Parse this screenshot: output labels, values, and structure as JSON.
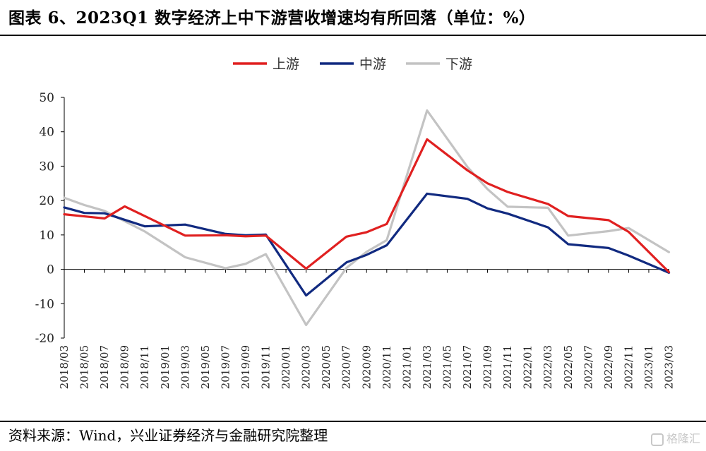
{
  "header": {
    "title": "图表 6、2023Q1 数字经济上中下游营收增速均有所回落（单位：%）"
  },
  "footer": {
    "source": "资料来源：Wind，兴业证券经济与金融研究院整理",
    "watermark": "格隆汇"
  },
  "chart_data": {
    "type": "line",
    "title": "",
    "xlabel": "",
    "ylabel": "",
    "ylim": [
      -20,
      50
    ],
    "yticks": [
      -20,
      -10,
      0,
      10,
      20,
      30,
      40,
      50
    ],
    "grid": false,
    "legend_position": "top-center",
    "categories": [
      "2018/03",
      "2018/05",
      "2018/07",
      "2018/09",
      "2018/11",
      "2019/01",
      "2019/03",
      "2019/05",
      "2019/07",
      "2019/09",
      "2019/11",
      "2020/01",
      "2020/03",
      "2020/05",
      "2020/07",
      "2020/09",
      "2020/11",
      "2021/01",
      "2021/03",
      "2021/05",
      "2021/07",
      "2021/09",
      "2021/11",
      "2022/01",
      "2022/03",
      "2022/05",
      "2022/07",
      "2022/09",
      "2022/11",
      "2023/01",
      "2023/03"
    ],
    "series": [
      {
        "name": "上游",
        "color": "#e02020",
        "values": [
          16,
          null,
          14.8,
          18.3,
          null,
          null,
          9.8,
          null,
          9.9,
          9.6,
          9.8,
          null,
          0.2,
          null,
          9.5,
          10.8,
          13.2,
          null,
          37.8,
          null,
          28.8,
          25,
          22.5,
          null,
          19,
          15.5,
          null,
          14.3,
          10.9,
          null,
          -0.8
        ]
      },
      {
        "name": "中游",
        "color": "#112a80",
        "values": [
          18,
          16.4,
          16.3,
          null,
          12.5,
          null,
          13,
          null,
          10.3,
          9.9,
          10.1,
          null,
          -7.6,
          null,
          2,
          4.2,
          7,
          null,
          22,
          null,
          20.5,
          17.7,
          16.2,
          null,
          12.2,
          7.3,
          null,
          6.2,
          4,
          null,
          -1
        ]
      },
      {
        "name": "下游",
        "color": "#c3c3c3",
        "values": [
          20.8,
          18.7,
          17,
          null,
          11,
          null,
          3.5,
          null,
          0.3,
          1.6,
          4.4,
          null,
          -16.2,
          null,
          0.4,
          5.1,
          8.5,
          null,
          46.2,
          null,
          29.8,
          23.3,
          18.2,
          null,
          17.9,
          9.8,
          null,
          11.1,
          12,
          null,
          5
        ]
      }
    ]
  }
}
